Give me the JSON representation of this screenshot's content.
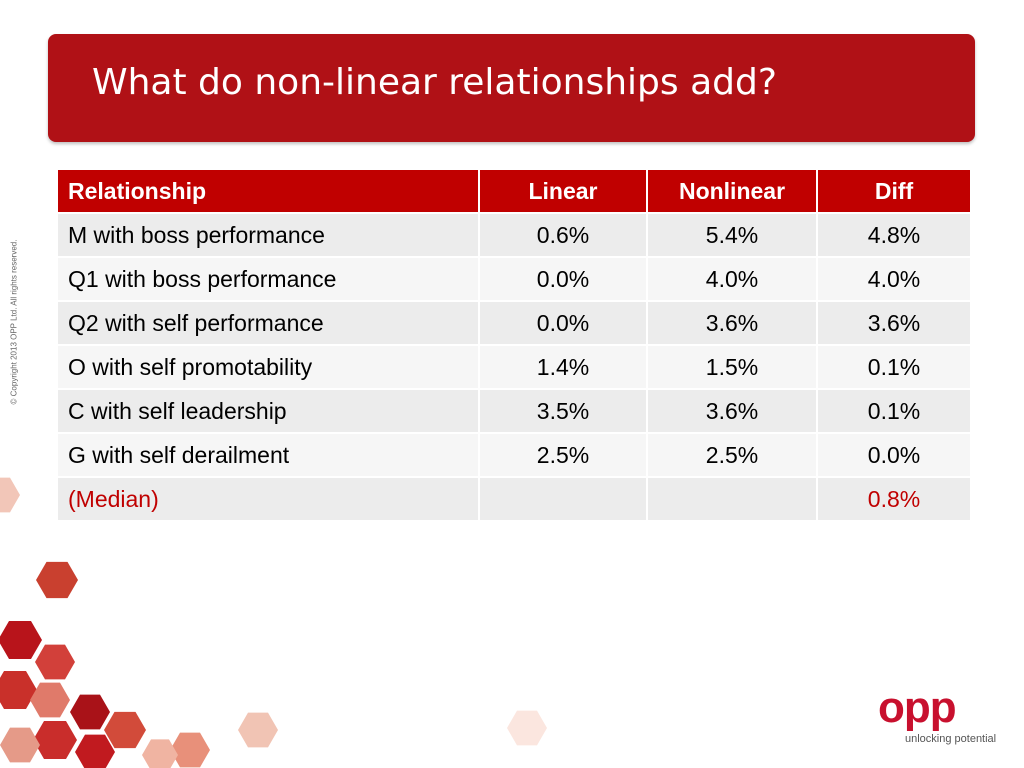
{
  "header": {
    "title": "What do non-linear relationships add?"
  },
  "copyright": "© Copyright 2013 OPP Ltd. All rights reserved.",
  "table": {
    "columns": [
      "Relationship",
      "Linear",
      "Nonlinear",
      "Diff"
    ],
    "rows": [
      [
        "M with boss performance",
        "0.6%",
        "5.4%",
        "4.8%"
      ],
      [
        "Q1 with boss performance",
        "0.0%",
        "4.0%",
        "4.0%"
      ],
      [
        "Q2 with self performance",
        "0.0%",
        "3.6%",
        "3.6%"
      ],
      [
        "O with self promotability",
        "1.4%",
        "1.5%",
        "0.1%"
      ],
      [
        "C with self leadership",
        "3.5%",
        "3.6%",
        "0.1%"
      ],
      [
        "G with self derailment",
        "2.5%",
        "2.5%",
        "0.0%"
      ],
      [
        "(Median)",
        null,
        null,
        "0.8%"
      ]
    ]
  },
  "logo": {
    "name": "opp",
    "tagline": "unlocking potential"
  }
}
